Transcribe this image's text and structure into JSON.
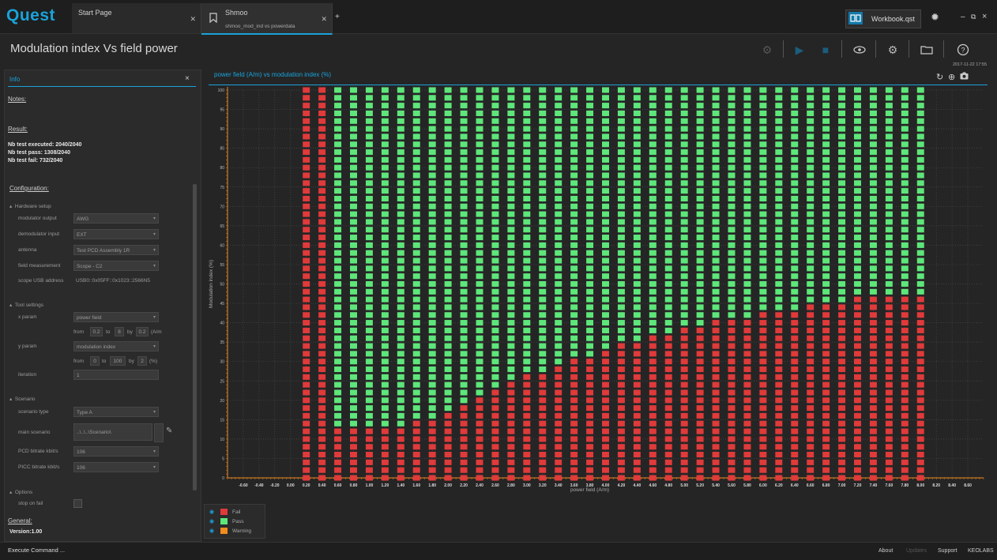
{
  "app": {
    "logo": "Quest",
    "window_controls": {
      "minimize": "‒",
      "restore": "⧉",
      "close": "×"
    }
  },
  "tabs": [
    {
      "label": "Start Page",
      "sub": ""
    },
    {
      "label": "Shmoo",
      "sub": "shmoo_mod_ind vs powerdata"
    }
  ],
  "workbook": "Workbook.qst",
  "page_title": "Modulation index Vs field power",
  "datestamp": "2017-11-22 17:55",
  "info_panel": {
    "tab": "Info",
    "notes_label": "Notes:",
    "result_label": "Result:",
    "results": [
      "Nb test executed: 2040/2040",
      "Nb test pass: 1308/2040",
      "Nb test fail: 732/2040"
    ],
    "configuration_label": "Configuration:",
    "hardware_setup": "Hardware setup",
    "hw_fields": [
      {
        "label": "modulator output",
        "value": "AWG",
        "dropdown": true
      },
      {
        "label": "demodulator input",
        "value": "EXT",
        "dropdown": true
      },
      {
        "label": "antenna",
        "value": "Test PCD Assembly 1R",
        "dropdown": true
      },
      {
        "label": "field measurement",
        "value": "Scope - C2",
        "dropdown": true
      },
      {
        "label": "scope USB address",
        "value": "USB0::0x05FF::0x1023::2566N5",
        "dropdown": false
      }
    ],
    "tool_settings": "Tool settings",
    "x_param": {
      "label": "x param",
      "value": "power field",
      "from_label": "from",
      "from": "0.2",
      "to_label": "to",
      "to": "8",
      "by_label": "by",
      "by": "0.2",
      "unit": "(A/m"
    },
    "y_param": {
      "label": "y param",
      "value": "modulation index",
      "from_label": "from",
      "from": "0",
      "to_label": "to",
      "to": "100",
      "by_label": "by",
      "by": "2",
      "unit": "(%)"
    },
    "iteration": {
      "label": "iteration",
      "value": "1"
    },
    "scenario": "Scenario",
    "scen_fields": [
      {
        "label": "scenario type",
        "value": "Type A",
        "dropdown": true
      },
      {
        "label": "main scenario",
        "value": "..\\..\\..\\Scenario\\",
        "dropdown": false
      },
      {
        "label": "PCD bitrate kbit/s",
        "value": "106",
        "dropdown": true
      },
      {
        "label": "PICC bitrate kbit/s",
        "value": "106",
        "dropdown": true
      }
    ],
    "options": "Options",
    "stop_on_fail": "stop on fail",
    "general_label": "General:",
    "version": "Version:1.00"
  },
  "chart_data": {
    "type": "heatmap",
    "title": "power field (A/m) vs modulation index (%)",
    "xlabel": "power field (A/m)",
    "ylabel": "Modulation index (%)",
    "x_ticks": [
      "-0.60",
      "-0.40",
      "-0.20",
      "0.00",
      "0.20",
      "0.40",
      "0.60",
      "0.80",
      "1.00",
      "1.20",
      "1.40",
      "1.60",
      "1.80",
      "2.00",
      "2.20",
      "2.40",
      "2.60",
      "2.80",
      "3.00",
      "3.20",
      "3.40",
      "3.60",
      "3.80",
      "4.00",
      "4.20",
      "4.40",
      "4.60",
      "4.80",
      "5.00",
      "5.20",
      "5.40",
      "5.60",
      "5.80",
      "6.00",
      "6.20",
      "6.40",
      "6.60",
      "6.80",
      "7.00",
      "7.20",
      "7.40",
      "7.60",
      "7.80",
      "8.00",
      "8.20",
      "8.40",
      "8.60"
    ],
    "y_ticks": [
      "0",
      "5",
      "10",
      "15",
      "20",
      "25",
      "30",
      "35",
      "40",
      "45",
      "50",
      "55",
      "60",
      "65",
      "70",
      "75",
      "80",
      "85",
      "90",
      "95",
      "100"
    ],
    "xlim": [
      -0.8,
      8.8
    ],
    "ylim": [
      0,
      100
    ],
    "y_step": 2,
    "columns": [
      {
        "x": 0.2,
        "fail_upto": 100
      },
      {
        "x": 0.4,
        "fail_upto": 100
      },
      {
        "x": 0.6,
        "fail_upto": 12
      },
      {
        "x": 0.8,
        "fail_upto": 12
      },
      {
        "x": 1.0,
        "fail_upto": 12
      },
      {
        "x": 1.2,
        "fail_upto": 12
      },
      {
        "x": 1.4,
        "fail_upto": 12
      },
      {
        "x": 1.6,
        "fail_upto": 14
      },
      {
        "x": 1.8,
        "fail_upto": 14
      },
      {
        "x": 2.0,
        "fail_upto": 16
      },
      {
        "x": 2.2,
        "fail_upto": 18
      },
      {
        "x": 2.4,
        "fail_upto": 20
      },
      {
        "x": 2.6,
        "fail_upto": 22
      },
      {
        "x": 2.8,
        "fail_upto": 24
      },
      {
        "x": 3.0,
        "fail_upto": 26
      },
      {
        "x": 3.2,
        "fail_upto": 26
      },
      {
        "x": 3.4,
        "fail_upto": 28
      },
      {
        "x": 3.6,
        "fail_upto": 30
      },
      {
        "x": 3.8,
        "fail_upto": 30
      },
      {
        "x": 4.0,
        "fail_upto": 32
      },
      {
        "x": 4.2,
        "fail_upto": 34
      },
      {
        "x": 4.4,
        "fail_upto": 34
      },
      {
        "x": 4.6,
        "fail_upto": 36
      },
      {
        "x": 4.8,
        "fail_upto": 36
      },
      {
        "x": 5.0,
        "fail_upto": 38
      },
      {
        "x": 5.2,
        "fail_upto": 38
      },
      {
        "x": 5.4,
        "fail_upto": 40
      },
      {
        "x": 5.6,
        "fail_upto": 40
      },
      {
        "x": 5.8,
        "fail_upto": 40
      },
      {
        "x": 6.0,
        "fail_upto": 42
      },
      {
        "x": 6.2,
        "fail_upto": 42
      },
      {
        "x": 6.4,
        "fail_upto": 42
      },
      {
        "x": 6.6,
        "fail_upto": 44
      },
      {
        "x": 6.8,
        "fail_upto": 44
      },
      {
        "x": 7.0,
        "fail_upto": 44
      },
      {
        "x": 7.2,
        "fail_upto": 46
      },
      {
        "x": 7.4,
        "fail_upto": 46
      },
      {
        "x": 7.6,
        "fail_upto": 46
      },
      {
        "x": 7.8,
        "fail_upto": 46
      },
      {
        "x": 8.0,
        "fail_upto": 46
      }
    ],
    "legend": [
      {
        "label": "Fail",
        "color": "#e03a3a"
      },
      {
        "label": "Pass",
        "color": "#5ee67a"
      },
      {
        "label": "Warning",
        "color": "#f08c1e"
      }
    ],
    "grid": true
  },
  "statusbar": {
    "execute": "Execute Command ...",
    "links": [
      "About",
      "Updates",
      "Support",
      "KEOLABS"
    ]
  }
}
